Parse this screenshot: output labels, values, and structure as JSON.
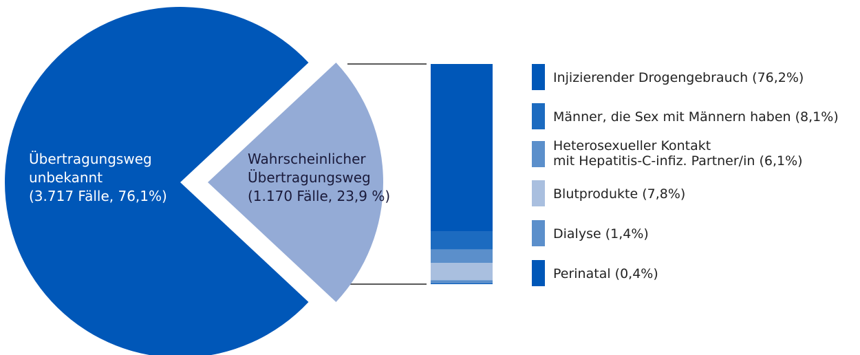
{
  "chart_data": [
    {
      "type": "pie",
      "categories": [
        "Übertragungsweg\nunbekannt",
        "Wahrscheinlicher\nÜbertragungsweg"
      ],
      "values": [
        76.1,
        23.9
      ],
      "value_labels": [
        "(3.717 Fälle, 76,1%)",
        "(1.170 Fälle, 23,9 %)"
      ],
      "colors": [
        "#0057b8",
        "#94abd6"
      ]
    },
    {
      "type": "stacked-bar",
      "categories": [
        "Injizierender Drogengebrauch",
        "Männer, die Sex mit Männern haben",
        "Heterosexueller Kontakt\nmit Hepatitis-C-infiz. Partner/in",
        "Blutprodukte",
        "Dialyse",
        "Perinatal"
      ],
      "values": [
        76.2,
        8.1,
        6.1,
        7.8,
        1.4,
        0.4
      ],
      "value_labels": [
        "(76,2%)",
        "(8,1%)",
        "(6,1%)",
        "(7,8%)",
        "(1,4%)",
        "(0,4%)"
      ],
      "colors": [
        "#0057b8",
        "#1c6bc0",
        "#5b8fcb",
        "#a9bfdf",
        "#5b8fcb",
        "#0057b8"
      ]
    }
  ]
}
